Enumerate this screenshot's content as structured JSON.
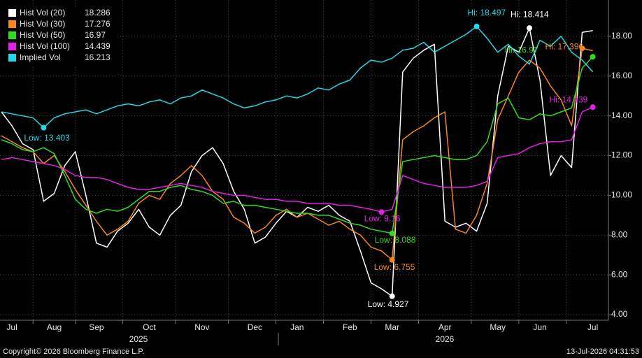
{
  "chart_data": {
    "type": "line",
    "categories": [
      null,
      "Jul",
      null,
      null,
      null,
      "Aug",
      null,
      null,
      null,
      "Sep",
      null,
      null,
      null,
      null,
      "Oct",
      null,
      null,
      null,
      null,
      "Nov",
      null,
      null,
      null,
      null,
      "Dec",
      null,
      null,
      null,
      "Jan",
      null,
      null,
      null,
      null,
      "Feb",
      null,
      null,
      null,
      "Mar",
      null,
      null,
      null,
      null,
      "Apr",
      null,
      null,
      null,
      null,
      "May",
      null,
      null,
      null,
      "Jun",
      null,
      null,
      null,
      null,
      "Jul"
    ],
    "years": [
      "2025",
      "2026"
    ],
    "series": [
      {
        "name": "Hist Vol (20)",
        "last": 18.286,
        "color": "#ffffff",
        "values": [
          14.2,
          13.5,
          12.6,
          12.3,
          9.7,
          10.1,
          11.5,
          12.2,
          10.0,
          7.6,
          7.4,
          8.2,
          8.6,
          9.3,
          8.4,
          8.0,
          9.0,
          9.5,
          11.2,
          12.0,
          12.4,
          11.6,
          10.2,
          9.3,
          7.6,
          7.9,
          8.6,
          9.2,
          8.9,
          9.4,
          9.2,
          9.5,
          9.0,
          8.7,
          7.2,
          5.6,
          5.3,
          4.927,
          16.2,
          16.9,
          17.3,
          17.6,
          8.7,
          8.4,
          8.6,
          8.2,
          9.6,
          15.0,
          17.5,
          17.2,
          18.414,
          15.8,
          11.0,
          12.0,
          11.4,
          18.2,
          18.286
        ]
      },
      {
        "name": "Hist Vol (30)",
        "last": 17.276,
        "color": "#f7861b",
        "values": [
          13.0,
          12.7,
          12.4,
          12.2,
          11.6,
          12.0,
          11.2,
          10.3,
          9.5,
          8.7,
          8.0,
          8.3,
          8.7,
          9.6,
          10.0,
          9.8,
          10.6,
          11.0,
          11.5,
          11.0,
          10.2,
          9.8,
          8.9,
          8.6,
          8.1,
          8.4,
          9.0,
          9.3,
          8.9,
          9.1,
          8.8,
          8.5,
          8.7,
          8.3,
          8.0,
          7.4,
          7.2,
          6.755,
          12.8,
          13.2,
          13.5,
          13.9,
          14.2,
          8.3,
          8.1,
          9.0,
          10.6,
          13.8,
          15.0,
          16.2,
          16.8,
          16.4,
          15.5,
          14.8,
          13.5,
          17.396,
          17.276
        ]
      },
      {
        "name": "Hist Vol (50)",
        "last": 16.97,
        "color": "#2fdc1e",
        "values": [
          12.8,
          12.6,
          12.3,
          12.2,
          12.4,
          12.1,
          11.0,
          9.8,
          9.3,
          9.1,
          9.3,
          9.2,
          9.4,
          9.8,
          10.2,
          10.2,
          10.4,
          10.5,
          10.3,
          10.2,
          10.0,
          9.6,
          9.7,
          9.5,
          9.5,
          9.4,
          9.3,
          9.2,
          9.1,
          9.1,
          9.0,
          9.0,
          8.8,
          8.6,
          8.5,
          8.3,
          8.2,
          8.088,
          11.7,
          11.8,
          11.9,
          12.0,
          11.9,
          11.8,
          11.8,
          12.0,
          12.7,
          14.6,
          14.9,
          13.9,
          13.8,
          14.1,
          14.0,
          14.2,
          14.4,
          16.4,
          16.97
        ]
      },
      {
        "name": "Hist Vol (100)",
        "last": 14.439,
        "color": "#e61ee6",
        "values": [
          11.8,
          11.9,
          11.8,
          11.7,
          11.6,
          11.5,
          11.3,
          11.0,
          10.9,
          10.9,
          10.8,
          10.6,
          10.4,
          10.3,
          10.3,
          10.4,
          10.5,
          10.6,
          10.5,
          10.4,
          10.2,
          10.1,
          10.0,
          10.0,
          9.9,
          9.8,
          9.8,
          9.7,
          9.7,
          9.6,
          9.6,
          9.6,
          9.5,
          9.5,
          9.4,
          9.3,
          9.16,
          9.3,
          11.0,
          10.8,
          10.6,
          10.5,
          10.4,
          10.4,
          10.4,
          10.5,
          10.7,
          11.9,
          12.0,
          12.1,
          12.4,
          12.6,
          12.7,
          12.7,
          12.8,
          14.2,
          14.439
        ]
      },
      {
        "name": "Implied Vol",
        "last": 16.213,
        "color": "#22d8e6",
        "values": [
          14.2,
          14.1,
          14.0,
          13.9,
          13.403,
          13.9,
          14.1,
          14.2,
          14.3,
          14.1,
          14.3,
          14.5,
          14.6,
          14.5,
          14.7,
          14.8,
          14.6,
          14.9,
          15.0,
          15.3,
          15.1,
          14.9,
          14.6,
          14.4,
          14.5,
          14.7,
          14.8,
          15.0,
          14.9,
          15.1,
          15.4,
          15.3,
          15.6,
          15.8,
          16.4,
          16.8,
          16.7,
          16.9,
          17.3,
          17.4,
          17.7,
          17.2,
          17.5,
          17.8,
          18.1,
          18.497,
          17.9,
          17.2,
          17.6,
          17.0,
          16.6,
          17.8,
          17.5,
          18.0,
          17.2,
          16.8,
          16.213
        ]
      }
    ],
    "annotations": [
      {
        "text": "Low: 13.403",
        "series": 4,
        "index": 4
      },
      {
        "text": "Hi: 18.497",
        "series": 4,
        "index": 45
      },
      {
        "text": "Hi: 18.414",
        "series": 0,
        "index": 50
      },
      {
        "text": "Low: 4.927",
        "series": 0,
        "index": 37
      },
      {
        "text": "Hi: 17.396",
        "series": 1,
        "index": 55
      },
      {
        "text": "Low: 6.755",
        "series": 1,
        "index": 37
      },
      {
        "text": "Hi: 16.97",
        "series": 2,
        "index": 56
      },
      {
        "text": "Low: 8.088",
        "series": 2,
        "index": 37
      },
      {
        "text": "Hi: 14.439",
        "series": 3,
        "index": 56
      },
      {
        "text": "Low: 9.16",
        "series": 3,
        "index": 36
      }
    ],
    "ylim": [
      3.72,
      19.72
    ],
    "yticks": [
      {
        "value": 4,
        "label": "4.00"
      },
      {
        "value": 6,
        "label": "6.00"
      },
      {
        "value": 8,
        "label": "8.00"
      },
      {
        "value": 10,
        "label": "10.00"
      },
      {
        "value": 12,
        "label": "12.00"
      },
      {
        "value": 14,
        "label": "14.00"
      },
      {
        "value": 16,
        "label": "16.00"
      },
      {
        "value": 18,
        "label": "18.00"
      }
    ],
    "grid": true,
    "legend": "top-left",
    "footer_left": "Copyright© 2026 Bloomberg Finance L.P.",
    "footer_right": "13-Jul-2026 04:31:53"
  }
}
